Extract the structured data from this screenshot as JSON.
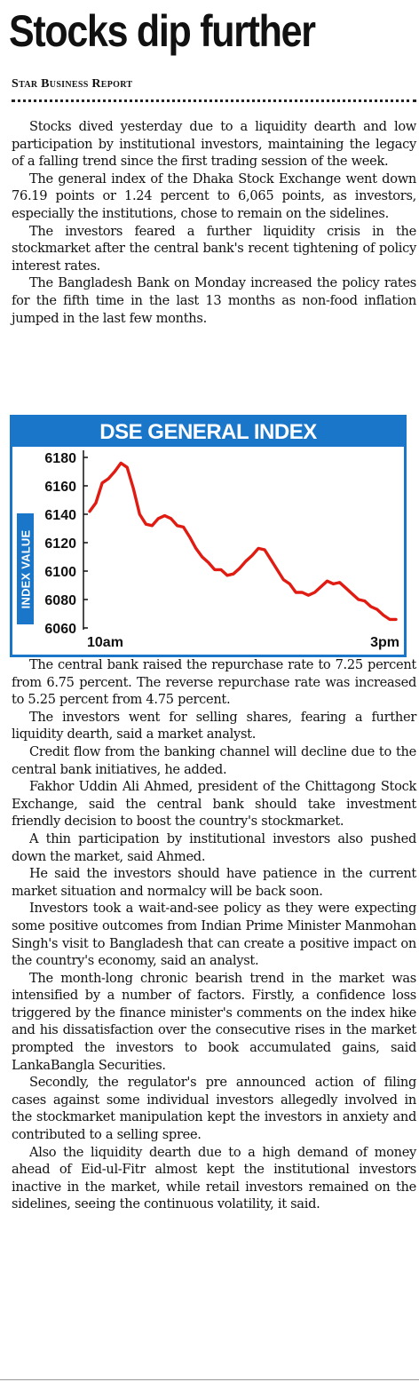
{
  "article": {
    "headline": "Stocks dip further",
    "byline": "Star Business Report",
    "paragraphs_before_chart": [
      "Stocks dived yesterday due to a liquidity dearth and low participation by institutional investors, maintaining the legacy of a falling trend since the first trading session of the week.",
      "The general index of the Dhaka Stock Exchange went down 76.19 points or 1.24 percent to 6,065 points, as investors, especially the institutions, chose to remain on the sidelines.",
      "The investors feared a further liquidity crisis in the stockmarket after the central bank's recent tightening of policy interest rates.",
      "The Bangladesh Bank on Monday increased the policy rates for the fifth time in the last 13 months as non-food inflation jumped in the last few months."
    ],
    "paragraphs_after_chart": [
      "The central bank raised the repurchase rate to 7.25 percent from 6.75 percent. The reverse repurchase rate was increased to 5.25 percent from 4.75 percent.",
      "The investors went for selling shares, fearing a further liquidity dearth, said a market analyst.",
      "Credit flow from the banking channel will decline due to the central bank initiatives, he added.",
      "Fakhor Uddin Ali Ahmed, president of the Chittagong Stock Exchange, said the central bank should take investment friendly decision to boost the country's stockmarket.",
      "A thin participation by institutional investors also pushed down the market, said Ahmed.",
      "He said the investors should have patience in the current market situation and normalcy will be back soon.",
      "Investors took a wait-and-see policy as they were expecting some positive outcomes from Indian Prime Minister Manmohan Singh's visit to Bangladesh that can create a positive impact on the country's economy, said an analyst.",
      "The month-long chronic bearish trend in the market was intensified by a number of factors. Firstly, a confidence loss triggered by the finance minister's comments on the index hike and his dissatisfaction over the consecutive rises in the market prompted the investors to book accumulated gains, said LankaBangla Securities.",
      "Secondly, the regulator's pre announced action of filing cases against some individual investors allegedly involved in the stockmarket manipulation kept the investors in anxiety and contributed to a selling spree.",
      "Also the liquidity dearth due to a high demand of money ahead of Eid-ul-Fitr almost kept the institutional investors inactive in the market, while retail investors remained on the sidelines, seeing the continuous volatility, it said."
    ]
  },
  "chart_data": {
    "type": "line",
    "title": "DSE GENERAL INDEX",
    "ylabel": "INDEX VALUE",
    "xlabel": "",
    "x_tick_labels": [
      "10am",
      "3pm"
    ],
    "y_ticks": [
      6060,
      6080,
      6100,
      6120,
      6140,
      6160,
      6180
    ],
    "ylim": [
      6060,
      6185
    ],
    "grid": false,
    "line_color": "#e01b12",
    "accent_color": "#1a76c9",
    "series": [
      {
        "values": [
          6142,
          6148,
          6162,
          6165,
          6170,
          6176,
          6173,
          6158,
          6140,
          6133,
          6132,
          6137,
          6139,
          6137,
          6132,
          6131,
          6124,
          6116,
          6110,
          6106,
          6101,
          6101,
          6097,
          6098,
          6102,
          6107,
          6111,
          6116,
          6115,
          6108,
          6101,
          6094,
          6091,
          6085,
          6085,
          6083,
          6085,
          6089,
          6093,
          6091,
          6092,
          6088,
          6084,
          6080,
          6079,
          6075,
          6073,
          6069,
          6066,
          6066
        ]
      }
    ]
  }
}
